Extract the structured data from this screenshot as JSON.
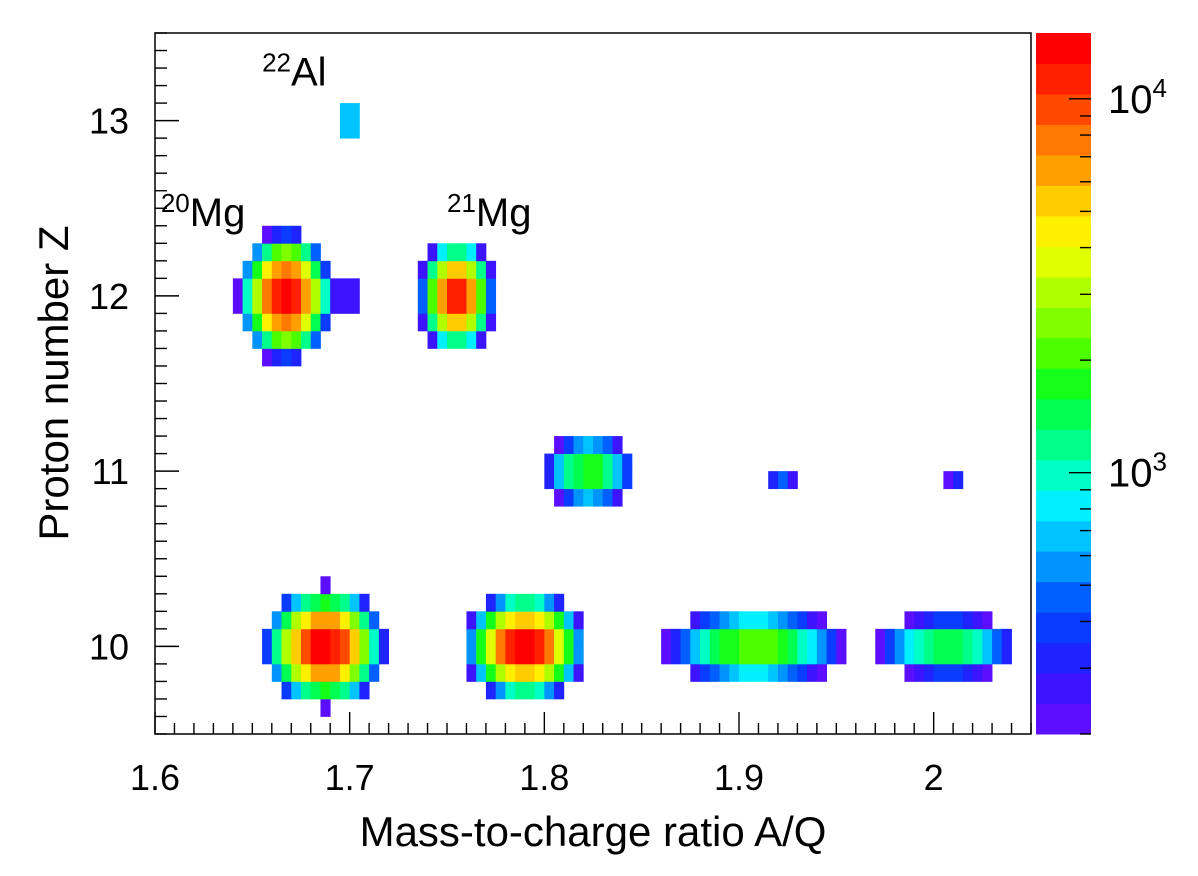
{
  "chart_data": {
    "type": "heatmap",
    "title": "",
    "xlabel": "Mass-to-charge ratio A/Q",
    "ylabel": "Proton number Z",
    "xlim": [
      1.6,
      2.05
    ],
    "ylim": [
      9.5,
      13.5
    ],
    "x_ticks": [
      "1.6",
      "1.7",
      "1.8",
      "1.9",
      "2"
    ],
    "x_tick_values": [
      1.6,
      1.7,
      1.8,
      1.9,
      2.0
    ],
    "y_ticks": [
      "10",
      "11",
      "12",
      "13"
    ],
    "y_tick_values": [
      10,
      11,
      12,
      13
    ],
    "bin_width_x": 0.005,
    "bin_height_y": 0.1,
    "color_scale": {
      "type": "log",
      "min": 200,
      "max": 15000,
      "labels": [
        {
          "base": "10",
          "exp": "3",
          "value": 1000
        },
        {
          "base": "10",
          "exp": "4",
          "value": 10000
        }
      ],
      "palette": [
        "#5c0fff",
        "#3d14ff",
        "#1f24ff",
        "#0a3cff",
        "#0060ff",
        "#0094ff",
        "#00c4ff",
        "#00f0ff",
        "#00ffc4",
        "#00ff8a",
        "#00ff50",
        "#14ff1a",
        "#4cff00",
        "#80ff00",
        "#b0ff00",
        "#e0ff00",
        "#fff000",
        "#ffcc00",
        "#ffa000",
        "#ff7800",
        "#ff4a00",
        "#ff2000",
        "#ff0000"
      ]
    },
    "clusters": [
      {
        "x": 1.667,
        "y": 12.0,
        "sx": 0.0085,
        "sy": 0.13,
        "peak": 15000
      },
      {
        "x": 1.692,
        "y": 12.0,
        "sx": 0.0075,
        "sy": 0.03,
        "peak": 260,
        "flat": true
      },
      {
        "x": 1.7,
        "y": 13.0,
        "sx": 0.0045,
        "sy": 0.08,
        "peak": 900
      },
      {
        "x": 1.755,
        "y": 12.0,
        "sx": 0.007,
        "sy": 0.12,
        "peak": 12000
      },
      {
        "x": 1.687,
        "y": 10.0,
        "sx": 0.011,
        "sy": 0.12,
        "peak": 15000
      },
      {
        "x": 1.79,
        "y": 10.0,
        "sx": 0.011,
        "sy": 0.11,
        "peak": 15000
      },
      {
        "x": 1.823,
        "y": 11.0,
        "sx": 0.011,
        "sy": 0.1,
        "peak": 2000
      },
      {
        "x": 1.922,
        "y": 10.95,
        "sx": 0.0055,
        "sy": 0.07,
        "peak": 450
      },
      {
        "x": 2.012,
        "y": 10.95,
        "sx": 0.005,
        "sy": 0.06,
        "peak": 320
      },
      {
        "x": 1.908,
        "y": 10.0,
        "sx": 0.021,
        "sy": 0.1,
        "peak": 2400
      },
      {
        "x": 2.007,
        "y": 10.0,
        "sx": 0.018,
        "sy": 0.09,
        "peak": 1600
      }
    ],
    "annotations": [
      {
        "mass": "22",
        "element": "Al",
        "x": 1.655,
        "y": 13.2
      },
      {
        "mass": "20",
        "element": "Mg",
        "x": 1.603,
        "y": 12.4
      },
      {
        "mass": "21",
        "element": "Mg",
        "x": 1.75,
        "y": 12.4
      }
    ]
  }
}
